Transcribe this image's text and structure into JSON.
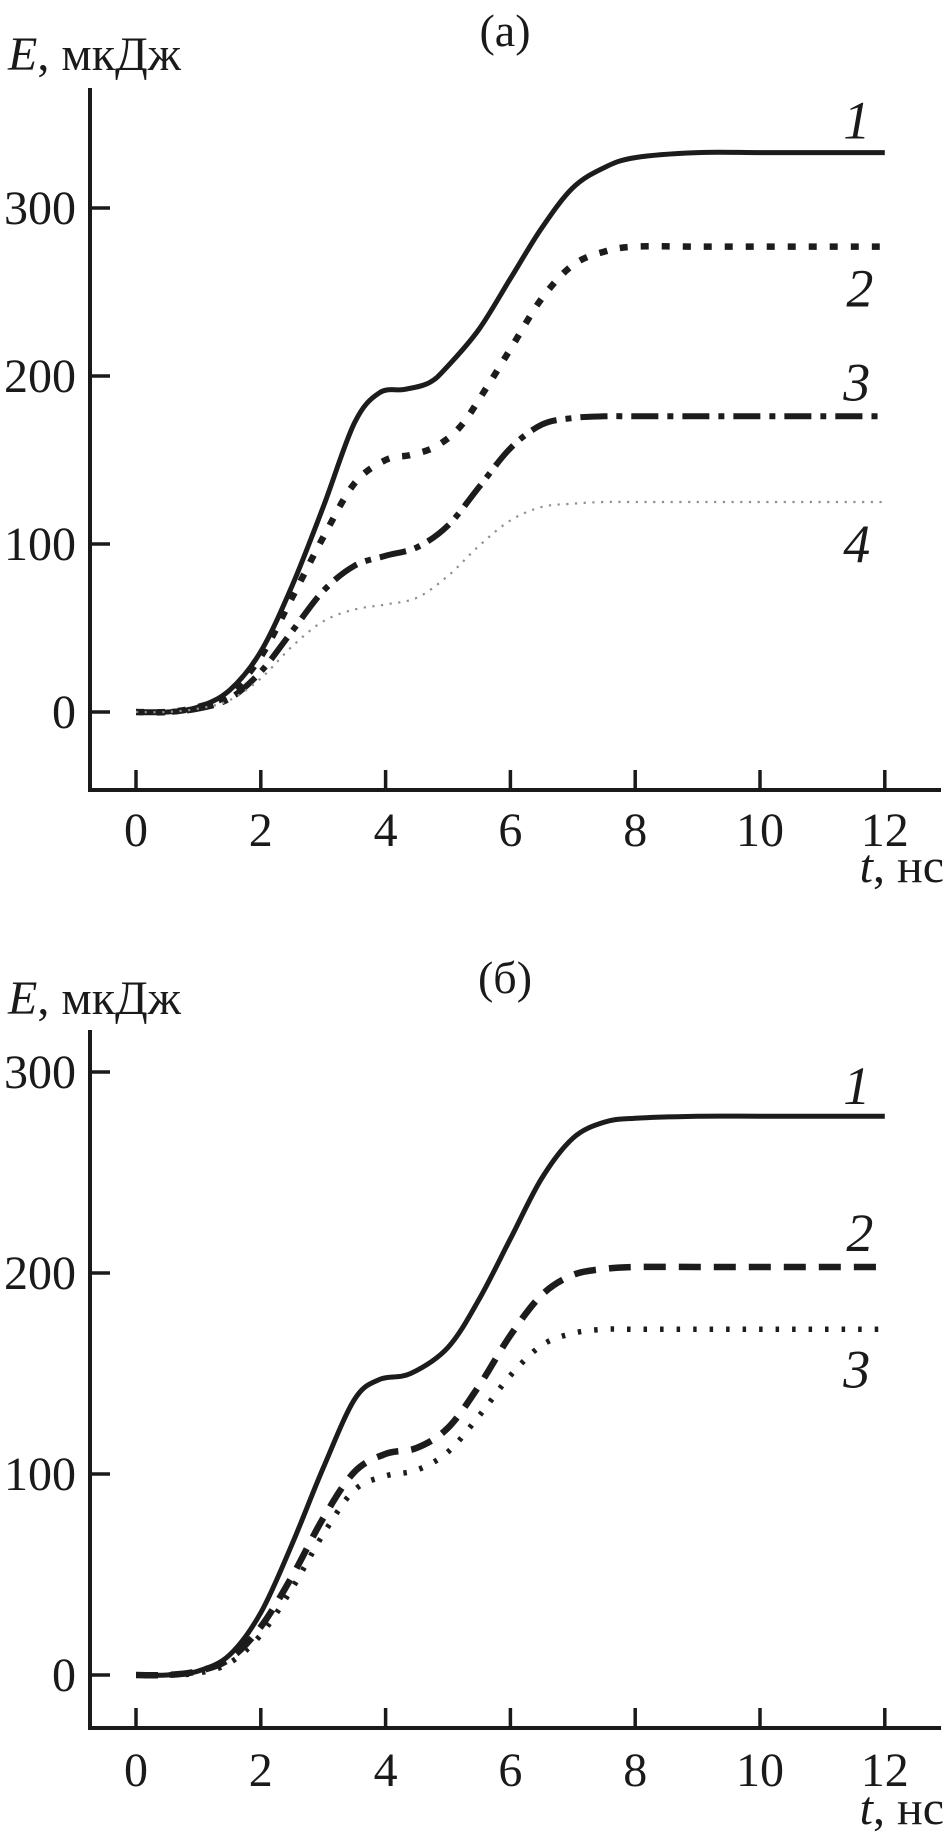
{
  "chart_data": [
    {
      "panel": "a",
      "type": "line",
      "title": "(а)",
      "ylabel_var": "E",
      "ylabel_rest": ", мкДж",
      "xlabel_var": "t",
      "xlabel_rest": ", нс",
      "xlim": [
        0,
        12
      ],
      "ylim": [
        0,
        371
      ],
      "x_ticks": [
        0,
        2,
        4,
        6,
        8,
        10,
        12
      ],
      "y_ticks": [
        0,
        100,
        200,
        300
      ],
      "grid": false,
      "legend_position": "curve-end-labels",
      "series": [
        {
          "name": "1",
          "style": "solid",
          "color": "#1c1c1c",
          "width": 5,
          "dash": "",
          "x": [
            0,
            0.5,
            1,
            1.5,
            2,
            2.5,
            3,
            3.5,
            3.9,
            4.3,
            4.7,
            5,
            5.5,
            6,
            6.5,
            7,
            7.5,
            8,
            9,
            10,
            11,
            12
          ],
          "y": [
            0,
            0,
            3,
            13,
            36,
            75,
            122,
            172,
            190,
            192,
            196,
            206,
            228,
            258,
            288,
            312,
            324,
            330,
            333,
            333,
            333,
            333
          ],
          "label_pos": {
            "t": 11.55,
            "E": 352
          }
        },
        {
          "name": "2",
          "style": "square-dotted",
          "color": "#1c1c1c",
          "width": 6.5,
          "dash": "8 13",
          "x": [
            0,
            0.5,
            1,
            1.5,
            2,
            2.5,
            3,
            3.5,
            4,
            4.4,
            4.8,
            5.2,
            5.6,
            6,
            6.5,
            7,
            7.5,
            8,
            9,
            10,
            11,
            12
          ],
          "y": [
            0,
            0,
            3,
            11,
            33,
            68,
            104,
            136,
            150,
            153,
            158,
            170,
            192,
            216,
            246,
            266,
            274,
            277,
            277,
            277,
            277,
            277
          ],
          "label_pos": {
            "t": 11.6,
            "E": 252
          }
        },
        {
          "name": "3",
          "style": "dash-dot",
          "color": "#1c1c1c",
          "width": 6,
          "dash": "27 9 6 9",
          "x": [
            0,
            0.5,
            1,
            1.5,
            2,
            2.5,
            3,
            3.5,
            4,
            4.5,
            5,
            5.5,
            6,
            6.5,
            7,
            7.5,
            8,
            9,
            10,
            11,
            12
          ],
          "y": [
            0,
            0,
            2,
            8,
            24,
            48,
            72,
            87,
            93,
            98,
            111,
            134,
            157,
            171,
            175,
            176,
            176,
            176,
            176,
            176,
            176
          ],
          "label_pos": {
            "t": 11.55,
            "E": 196
          }
        },
        {
          "name": "4",
          "style": "fine-dotted",
          "color": "#8f8f8f",
          "width": 2.2,
          "dash": "2.2 6.5",
          "x": [
            0,
            0.5,
            1,
            1.5,
            2,
            2.5,
            3,
            3.5,
            4,
            4.5,
            5,
            5.5,
            6,
            6.5,
            7,
            7.5,
            8,
            9,
            10,
            11,
            12
          ],
          "y": [
            0,
            0,
            2,
            7,
            20,
            39,
            54,
            61,
            64,
            68,
            81,
            99,
            114,
            122,
            124,
            125,
            125,
            125,
            125,
            125,
            125
          ],
          "label_pos": {
            "t": 11.55,
            "E": 100
          }
        }
      ]
    },
    {
      "panel": "б",
      "type": "line",
      "title": "(б)",
      "ylabel_var": "E",
      "ylabel_rest": ", мкДж",
      "xlabel_var": "t",
      "xlabel_rest": ", нс",
      "xlim": [
        0,
        12
      ],
      "ylim": [
        0,
        321
      ],
      "x_ticks": [
        0,
        2,
        4,
        6,
        8,
        10,
        12
      ],
      "y_ticks": [
        0,
        100,
        200,
        300
      ],
      "grid": false,
      "legend_position": "curve-end-labels",
      "series": [
        {
          "name": "1",
          "style": "solid",
          "color": "#1c1c1c",
          "width": 5,
          "dash": "",
          "x": [
            0,
            0.5,
            1,
            1.5,
            2,
            2.5,
            3,
            3.5,
            3.9,
            4.4,
            5,
            5.5,
            6,
            6.5,
            7,
            7.5,
            8,
            9,
            10,
            11,
            12
          ],
          "y": [
            0,
            0,
            2,
            10,
            31,
            65,
            103,
            137,
            147,
            150,
            163,
            187,
            217,
            247,
            267,
            275,
            277,
            278,
            278,
            278,
            278
          ],
          "label_pos": {
            "t": 11.55,
            "E": 293
          }
        },
        {
          "name": "2",
          "style": "dashed",
          "color": "#1c1c1c",
          "width": 6.5,
          "dash": "22 13",
          "x": [
            0,
            0.5,
            1,
            1.5,
            2,
            2.5,
            3,
            3.5,
            4,
            4.5,
            5,
            5.5,
            6,
            6.5,
            7,
            7.5,
            8,
            9,
            10,
            11,
            12
          ],
          "y": [
            0,
            0,
            2,
            8,
            24,
            49,
            78,
            101,
            110,
            113,
            123,
            144,
            169,
            189,
            199,
            202,
            203,
            203,
            203,
            203,
            203
          ],
          "label_pos": {
            "t": 11.6,
            "E": 220
          }
        },
        {
          "name": "3",
          "style": "dotted",
          "color": "#1c1c1c",
          "width": 5.5,
          "dash": "3.5 13",
          "x": [
            0,
            0.5,
            1,
            1.5,
            2,
            2.5,
            3,
            3.5,
            4,
            4.5,
            5,
            5.5,
            6,
            6.5,
            7,
            7.5,
            8,
            9,
            10,
            11,
            12
          ],
          "y": [
            0,
            0,
            1,
            6,
            20,
            43,
            70,
            92,
            99,
            102,
            111,
            129,
            149,
            164,
            170,
            172,
            172,
            172,
            172,
            172,
            172
          ],
          "label_pos": {
            "t": 11.55,
            "E": 152
          }
        }
      ]
    }
  ]
}
